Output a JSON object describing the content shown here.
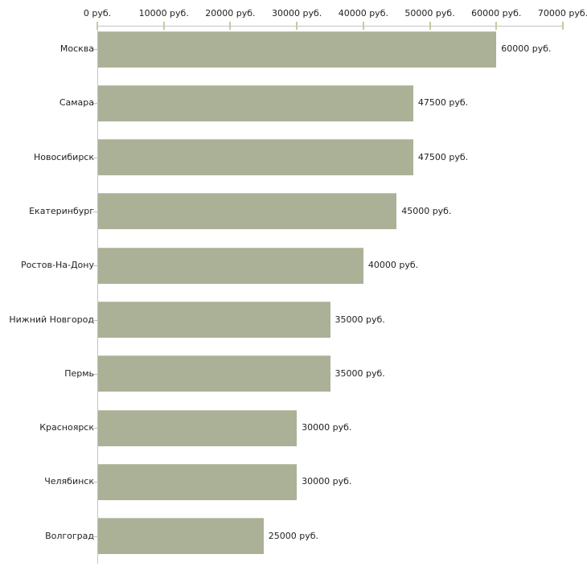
{
  "chart_data": {
    "type": "bar",
    "orientation": "horizontal",
    "title": "",
    "xlabel": "",
    "ylabel": "",
    "unit": "руб.",
    "grid": false,
    "legend": null,
    "xlim": [
      0,
      70000
    ],
    "x_tick_values": [
      0,
      10000,
      20000,
      30000,
      40000,
      50000,
      60000,
      70000
    ],
    "x_tick_labels": [
      "0 руб.",
      "10000 руб.",
      "20000 руб.",
      "30000 руб.",
      "40000 руб.",
      "50000 руб.",
      "60000 руб.",
      "70000 руб."
    ],
    "categories": [
      "Москва",
      "Самара",
      "Новосибирск",
      "Екатеринбург",
      "Ростов-На-Дону",
      "Нижний Новгород",
      "Пермь",
      "Красноярск",
      "Челябинск",
      "Волгоград"
    ],
    "values": [
      60000,
      47500,
      47500,
      45000,
      40000,
      35000,
      35000,
      30000,
      30000,
      25000
    ],
    "value_labels": [
      "60000 руб.",
      "47500 руб.",
      "47500 руб.",
      "45000 руб.",
      "40000 руб.",
      "35000 руб.",
      "35000 руб.",
      "30000 руб.",
      "30000 руб.",
      "25000 руб."
    ],
    "colors": {
      "bar": "#abb197",
      "axis_line": "#c3c3c3",
      "tick": "#c9c9a2",
      "category_tick": "#bfbfa8",
      "text": "#222222",
      "background": "#ffffff"
    }
  }
}
